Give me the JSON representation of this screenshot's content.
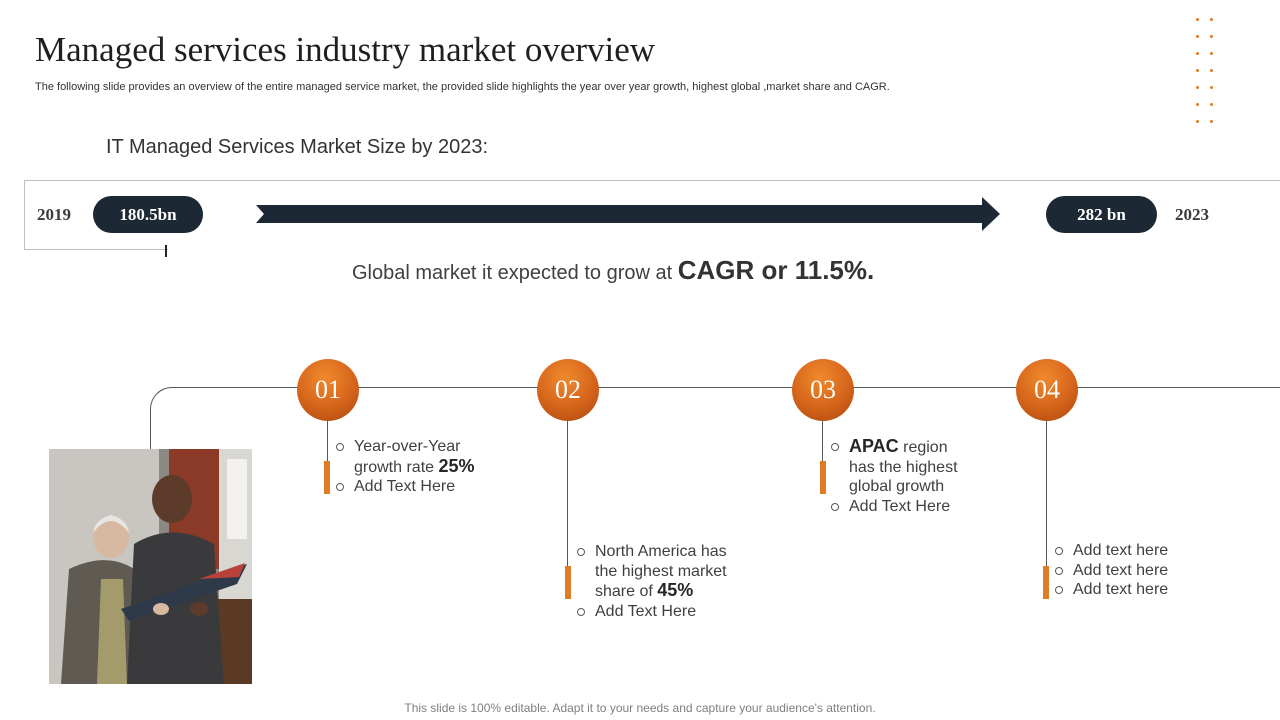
{
  "title": "Managed services industry market overview",
  "subtitle": "The following slide provides an overview of the entire managed service market, the provided slide highlights the year over year growth, highest global ,market share and CAGR.",
  "market": {
    "heading": "IT Managed Services Market Size by 2023:",
    "start_year": "2019",
    "start_value": "180.5bn",
    "end_value": "282 bn",
    "end_year": "2023"
  },
  "cagr": {
    "text": "Global market  it expected to grow at ",
    "highlight": "CAGR or 11.5%."
  },
  "steps": [
    {
      "number": "01",
      "line1": "Year-over-Year",
      "line2_pre": "growth rate ",
      "line2_bold": "25%",
      "line3": "Add Text Here"
    },
    {
      "number": "02",
      "line1": "North America has",
      "line2": "the highest market",
      "line3_pre": "share of ",
      "line3_bold": "45%",
      "line4": "Add Text Here"
    },
    {
      "number": "03",
      "line1_bold": "APAC",
      "line1_post": " region",
      "line2": "has the highest",
      "line3": "global growth",
      "line4": "Add Text Here"
    },
    {
      "number": "04",
      "items": [
        "Add text here",
        "Add text here",
        "Add text here"
      ]
    }
  ],
  "footer": "This slide is 100% editable. Adapt it to your needs and capture your audience's attention.",
  "colors": {
    "accent": "#e07b26",
    "dark": "#1c2833"
  }
}
